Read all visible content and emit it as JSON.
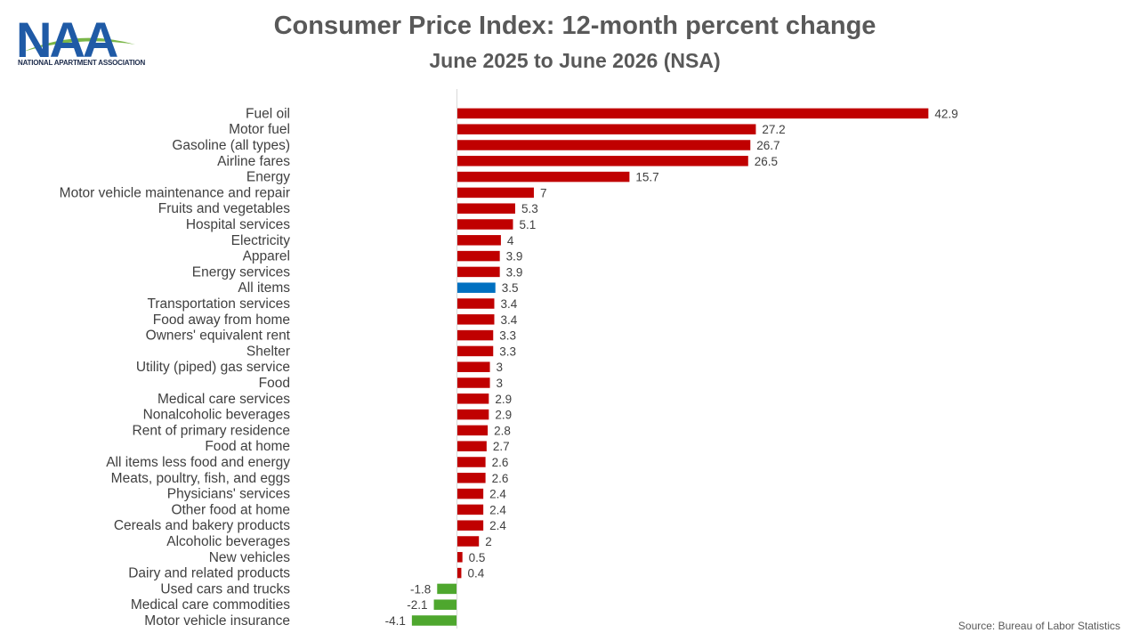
{
  "logo": {
    "text": "NAA",
    "caption": "NATIONAL APARTMENT ASSOCIATION"
  },
  "source": "Source: Bureau of Labor Statistics",
  "colors": {
    "increase": "#c00000",
    "all_items": "#0070c0",
    "decrease": "#4ea72e"
  },
  "chart_data": {
    "type": "bar",
    "orientation": "horizontal",
    "title": "Consumer Price Index: 12-month percent change",
    "subtitle": "June 2025 to June 2026 (NSA)",
    "xlim": [
      -5,
      50
    ],
    "grid": false,
    "data_labels": true,
    "categories": [
      "Fuel oil",
      "Motor fuel",
      "Gasoline (all types)",
      "Airline fares",
      "Energy",
      "Motor vehicle maintenance and repair",
      "Fruits and vegetables",
      "Hospital services",
      "Electricity",
      "Apparel",
      "Energy services",
      "All items",
      "Transportation services",
      "Food away from home",
      "Owners' equivalent rent",
      "Shelter",
      "Utility (piped) gas service",
      "Food",
      "Medical care services",
      "Nonalcoholic beverages",
      "Rent of primary residence",
      "Food at home",
      "All items less food and energy",
      "Meats, poultry, fish, and eggs",
      "Physicians' services",
      "Other food at home",
      "Cereals and bakery products",
      "Alcoholic beverages",
      "New vehicles",
      "Dairy and related products",
      "Used cars and trucks",
      "Medical care commodities",
      "Motor vehicle insurance"
    ],
    "values": [
      42.9,
      27.2,
      26.7,
      26.5,
      15.7,
      7,
      5.3,
      5.1,
      4,
      3.9,
      3.9,
      3.5,
      3.4,
      3.4,
      3.3,
      3.3,
      3,
      3,
      2.9,
      2.9,
      2.8,
      2.7,
      2.6,
      2.6,
      2.4,
      2.4,
      2.4,
      2,
      0.5,
      0.4,
      -1.8,
      -2.1,
      -4.1
    ],
    "highlight": "All items"
  }
}
